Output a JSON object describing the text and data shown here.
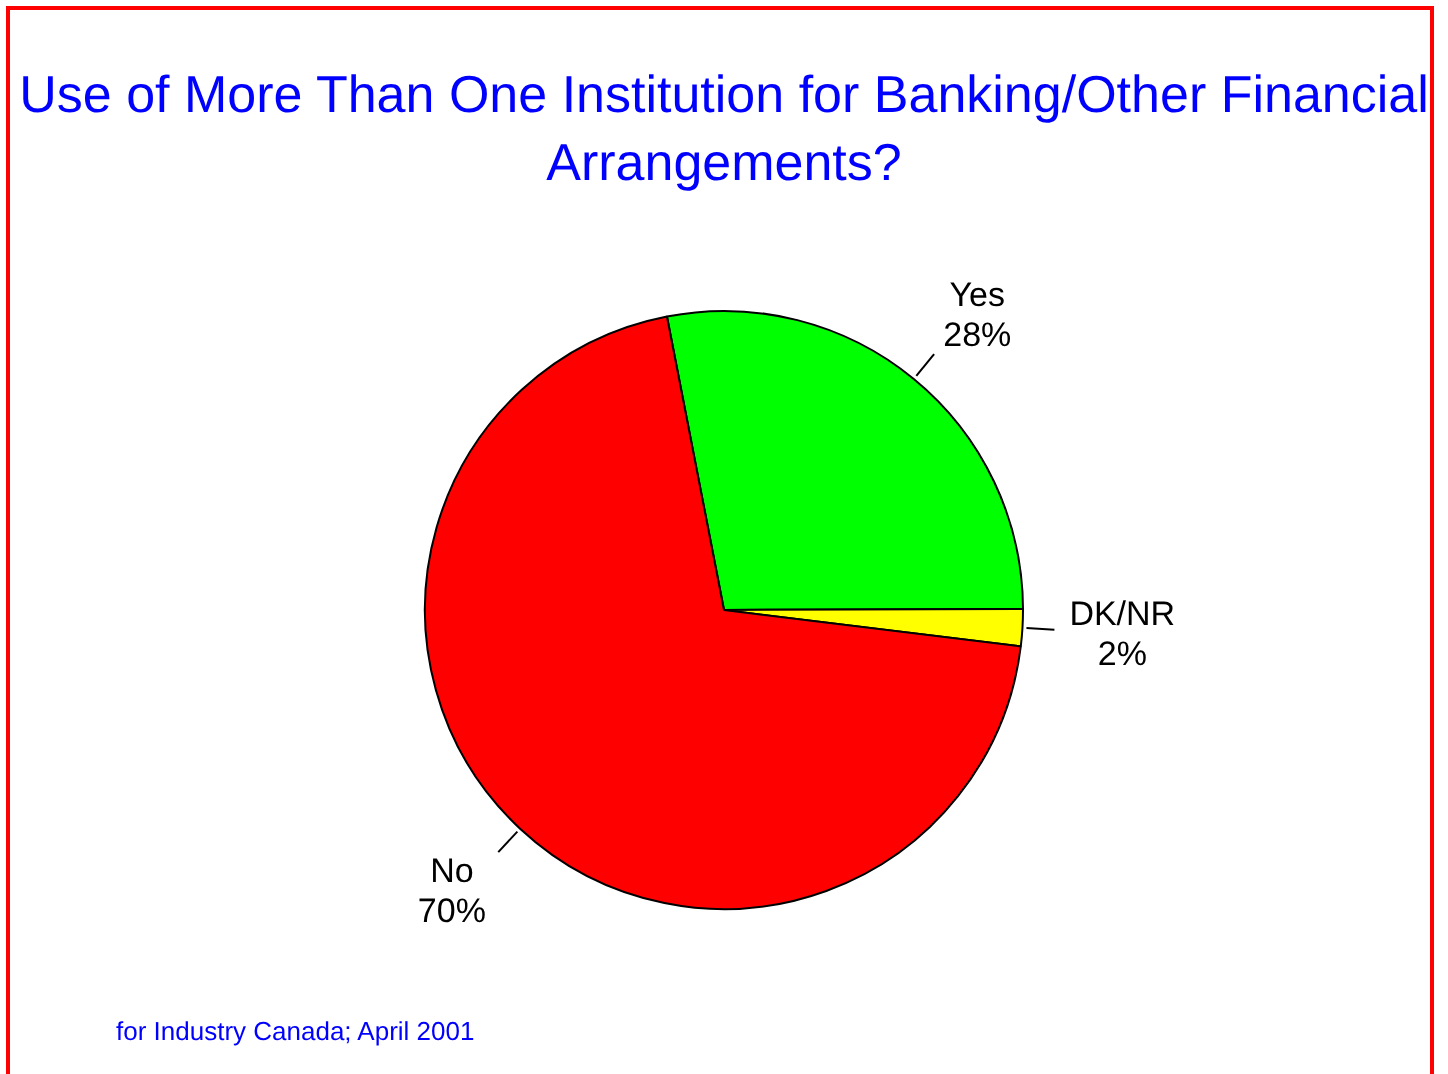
{
  "chart_data": {
    "type": "pie",
    "title": "Use of More Than One Institution for Banking/Other Financial Arrangements?",
    "categories": [
      "Yes",
      "DK/NR",
      "No"
    ],
    "values": [
      28,
      2,
      70
    ],
    "value_labels": [
      "28%",
      "2%",
      "70%"
    ],
    "colors": [
      "#00ff00",
      "#ffff00",
      "#ff0000"
    ],
    "legend": false,
    "annotations": [
      "for Industry Canada; April 2001"
    ]
  }
}
